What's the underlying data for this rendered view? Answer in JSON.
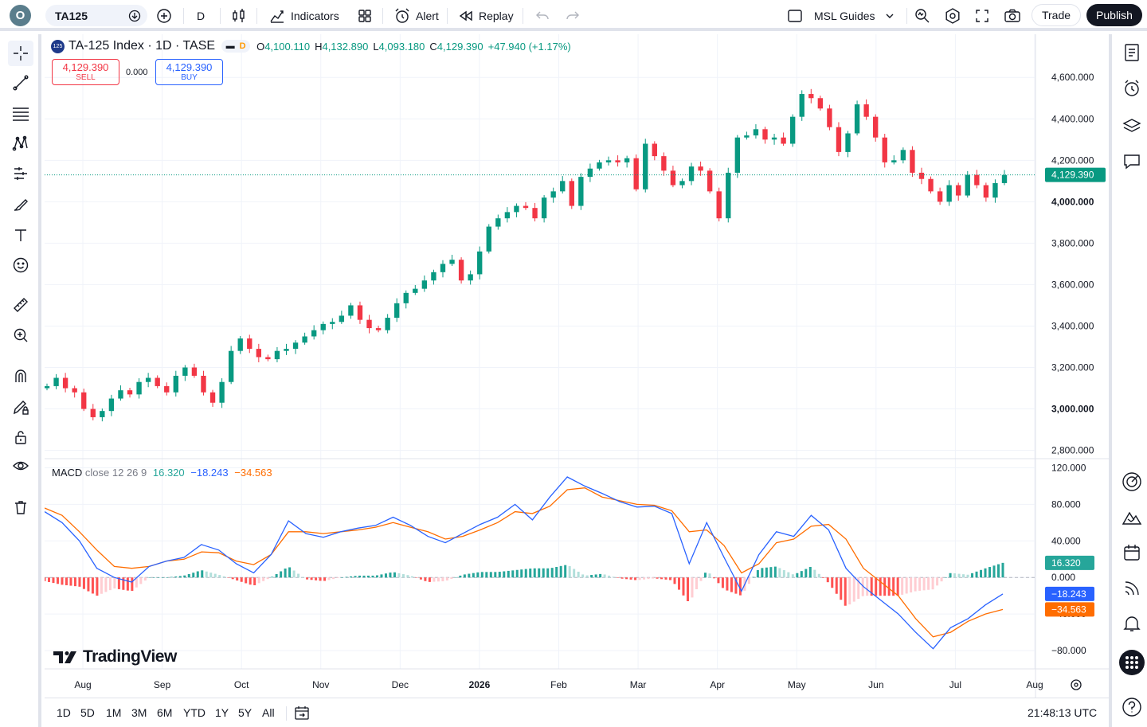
{
  "toolbar": {
    "logo_letter": "O",
    "symbol": "TA125",
    "interval": "D",
    "indicators_label": "Indicators",
    "alert_label": "Alert",
    "replay_label": "Replay",
    "guides_label": "MSL Guides",
    "trade_label": "Trade",
    "publish_label": "Publish"
  },
  "legend": {
    "badge": "125",
    "title": "TA-125 Index · 1D · TASE",
    "interval_badge": "D",
    "o_label": "O",
    "o_value": "4,100.110",
    "h_label": "H",
    "h_value": "4,132.890",
    "l_label": "L",
    "l_value": "4,093.180",
    "c_label": "C",
    "c_value": "4,129.390",
    "change": "+47.940 (+1.17%)"
  },
  "order": {
    "sell_price": "4,129.390",
    "sell_label": "SELL",
    "spread": "0.000",
    "buy_price": "4,129.390",
    "buy_label": "BUY"
  },
  "macd": {
    "name": "MACD",
    "params": "close 12 26 9",
    "hist_value": "16.320",
    "macd_value": "−18.243",
    "signal_value": "−34.563"
  },
  "brand": "TradingView",
  "bottom": {
    "ranges": [
      "1D",
      "5D",
      "1M",
      "3M",
      "6M",
      "YTD",
      "1Y",
      "5Y",
      "All"
    ],
    "time": "21:48:13 UTC"
  },
  "colors": {
    "up": "#089981",
    "down": "#f23645",
    "macd_line": "#2962ff",
    "signal_line": "#ff6d00",
    "hist_up_strong": "#26a69a",
    "hist_up_weak": "#b2dfdb",
    "hist_down_strong": "#ff5252",
    "hist_down_weak": "#ffcdd2"
  },
  "chart_data": [
    {
      "type": "candlestick",
      "title": "TA-125 Index · 1D · TASE",
      "x_ticks": [
        "Aug",
        "Sep",
        "Oct",
        "Nov",
        "Dec",
        "2026",
        "Feb",
        "Mar",
        "Apr",
        "May",
        "Jun",
        "Jul",
        "Aug"
      ],
      "y_ticks": [
        "4,600.000",
        "4,400.000",
        "4,200.000",
        "4,000.000",
        "3,800.000",
        "3,600.000",
        "3,400.000",
        "3,200.000",
        "3,000.000",
        "2,800.000"
      ],
      "ylim": [
        2760,
        4770
      ],
      "last_price_label": "4,129.390",
      "closes": [
        3110,
        3150,
        3100,
        3080,
        3000,
        2960,
        2990,
        3050,
        3090,
        3070,
        3130,
        3150,
        3110,
        3080,
        3160,
        3200,
        3160,
        3080,
        3030,
        3130,
        3280,
        3340,
        3290,
        3250,
        3240,
        3280,
        3290,
        3320,
        3350,
        3380,
        3410,
        3420,
        3450,
        3500,
        3430,
        3390,
        3380,
        3440,
        3510,
        3560,
        3580,
        3620,
        3660,
        3700,
        3720,
        3620,
        3650,
        3760,
        3880,
        3920,
        3950,
        3980,
        3970,
        3920,
        4020,
        4050,
        4100,
        3980,
        4120,
        4160,
        4190,
        4200,
        4190,
        4210,
        4060,
        4280,
        4220,
        4150,
        4080,
        4100,
        4170,
        4150,
        4050,
        3920,
        4140,
        4310,
        4320,
        4350,
        4300,
        4310,
        4280,
        4410,
        4520,
        4500,
        4450,
        4360,
        4240,
        4330,
        4470,
        4410,
        4310,
        4190,
        4200,
        4250,
        4140,
        4110,
        4050,
        4000,
        4080,
        4030,
        4130,
        4080,
        4020,
        4090,
        4129
      ]
    },
    {
      "type": "line",
      "title": "MACD close 12 26 9",
      "y_ticks": [
        "120.000",
        "80.000",
        "40.000",
        "0.000",
        "-40.000",
        "-80.000"
      ],
      "ylim": [
        -100,
        130
      ],
      "series": [
        {
          "name": "MACD",
          "values": [
            72,
            60,
            40,
            10,
            0,
            -5,
            12,
            18,
            22,
            36,
            30,
            15,
            5,
            25,
            62,
            48,
            44,
            50,
            54,
            57,
            66,
            57,
            45,
            38,
            48,
            58,
            66,
            80,
            63,
            88,
            110,
            100,
            92,
            83,
            77,
            78,
            70,
            15,
            60,
            22,
            -15,
            25,
            50,
            45,
            68,
            52,
            10,
            -10,
            -25,
            -40,
            -60,
            -78,
            -55,
            -45,
            -30,
            -18
          ]
        },
        {
          "name": "Signal",
          "values": [
            76,
            68,
            50,
            30,
            12,
            10,
            12,
            18,
            20,
            28,
            27,
            18,
            14,
            25,
            50,
            50,
            48,
            50,
            52,
            55,
            60,
            55,
            50,
            42,
            45,
            52,
            60,
            72,
            70,
            78,
            96,
            98,
            88,
            84,
            80,
            79,
            73,
            50,
            52,
            35,
            5,
            15,
            38,
            42,
            56,
            58,
            42,
            10,
            -5,
            -20,
            -45,
            -65,
            -60,
            -48,
            -40,
            -35
          ]
        },
        {
          "name": "Histogram",
          "values": [
            -4,
            -8,
            -10,
            -20,
            -12,
            -15,
            0,
            0,
            2,
            8,
            3,
            -3,
            -9,
            0,
            12,
            -2,
            -4,
            0,
            2,
            2,
            6,
            2,
            -5,
            -4,
            3,
            6,
            6,
            8,
            10,
            10,
            14,
            2,
            4,
            -1,
            -3,
            -1,
            -3,
            -28,
            8,
            -13,
            -20,
            10,
            12,
            3,
            12,
            -6,
            -32,
            -20,
            -20,
            -20,
            -15,
            -13,
            5,
            3,
            10,
            16
          ]
        }
      ],
      "current_labels": [
        "16.320",
        "−18.243",
        "−34.563"
      ]
    }
  ]
}
